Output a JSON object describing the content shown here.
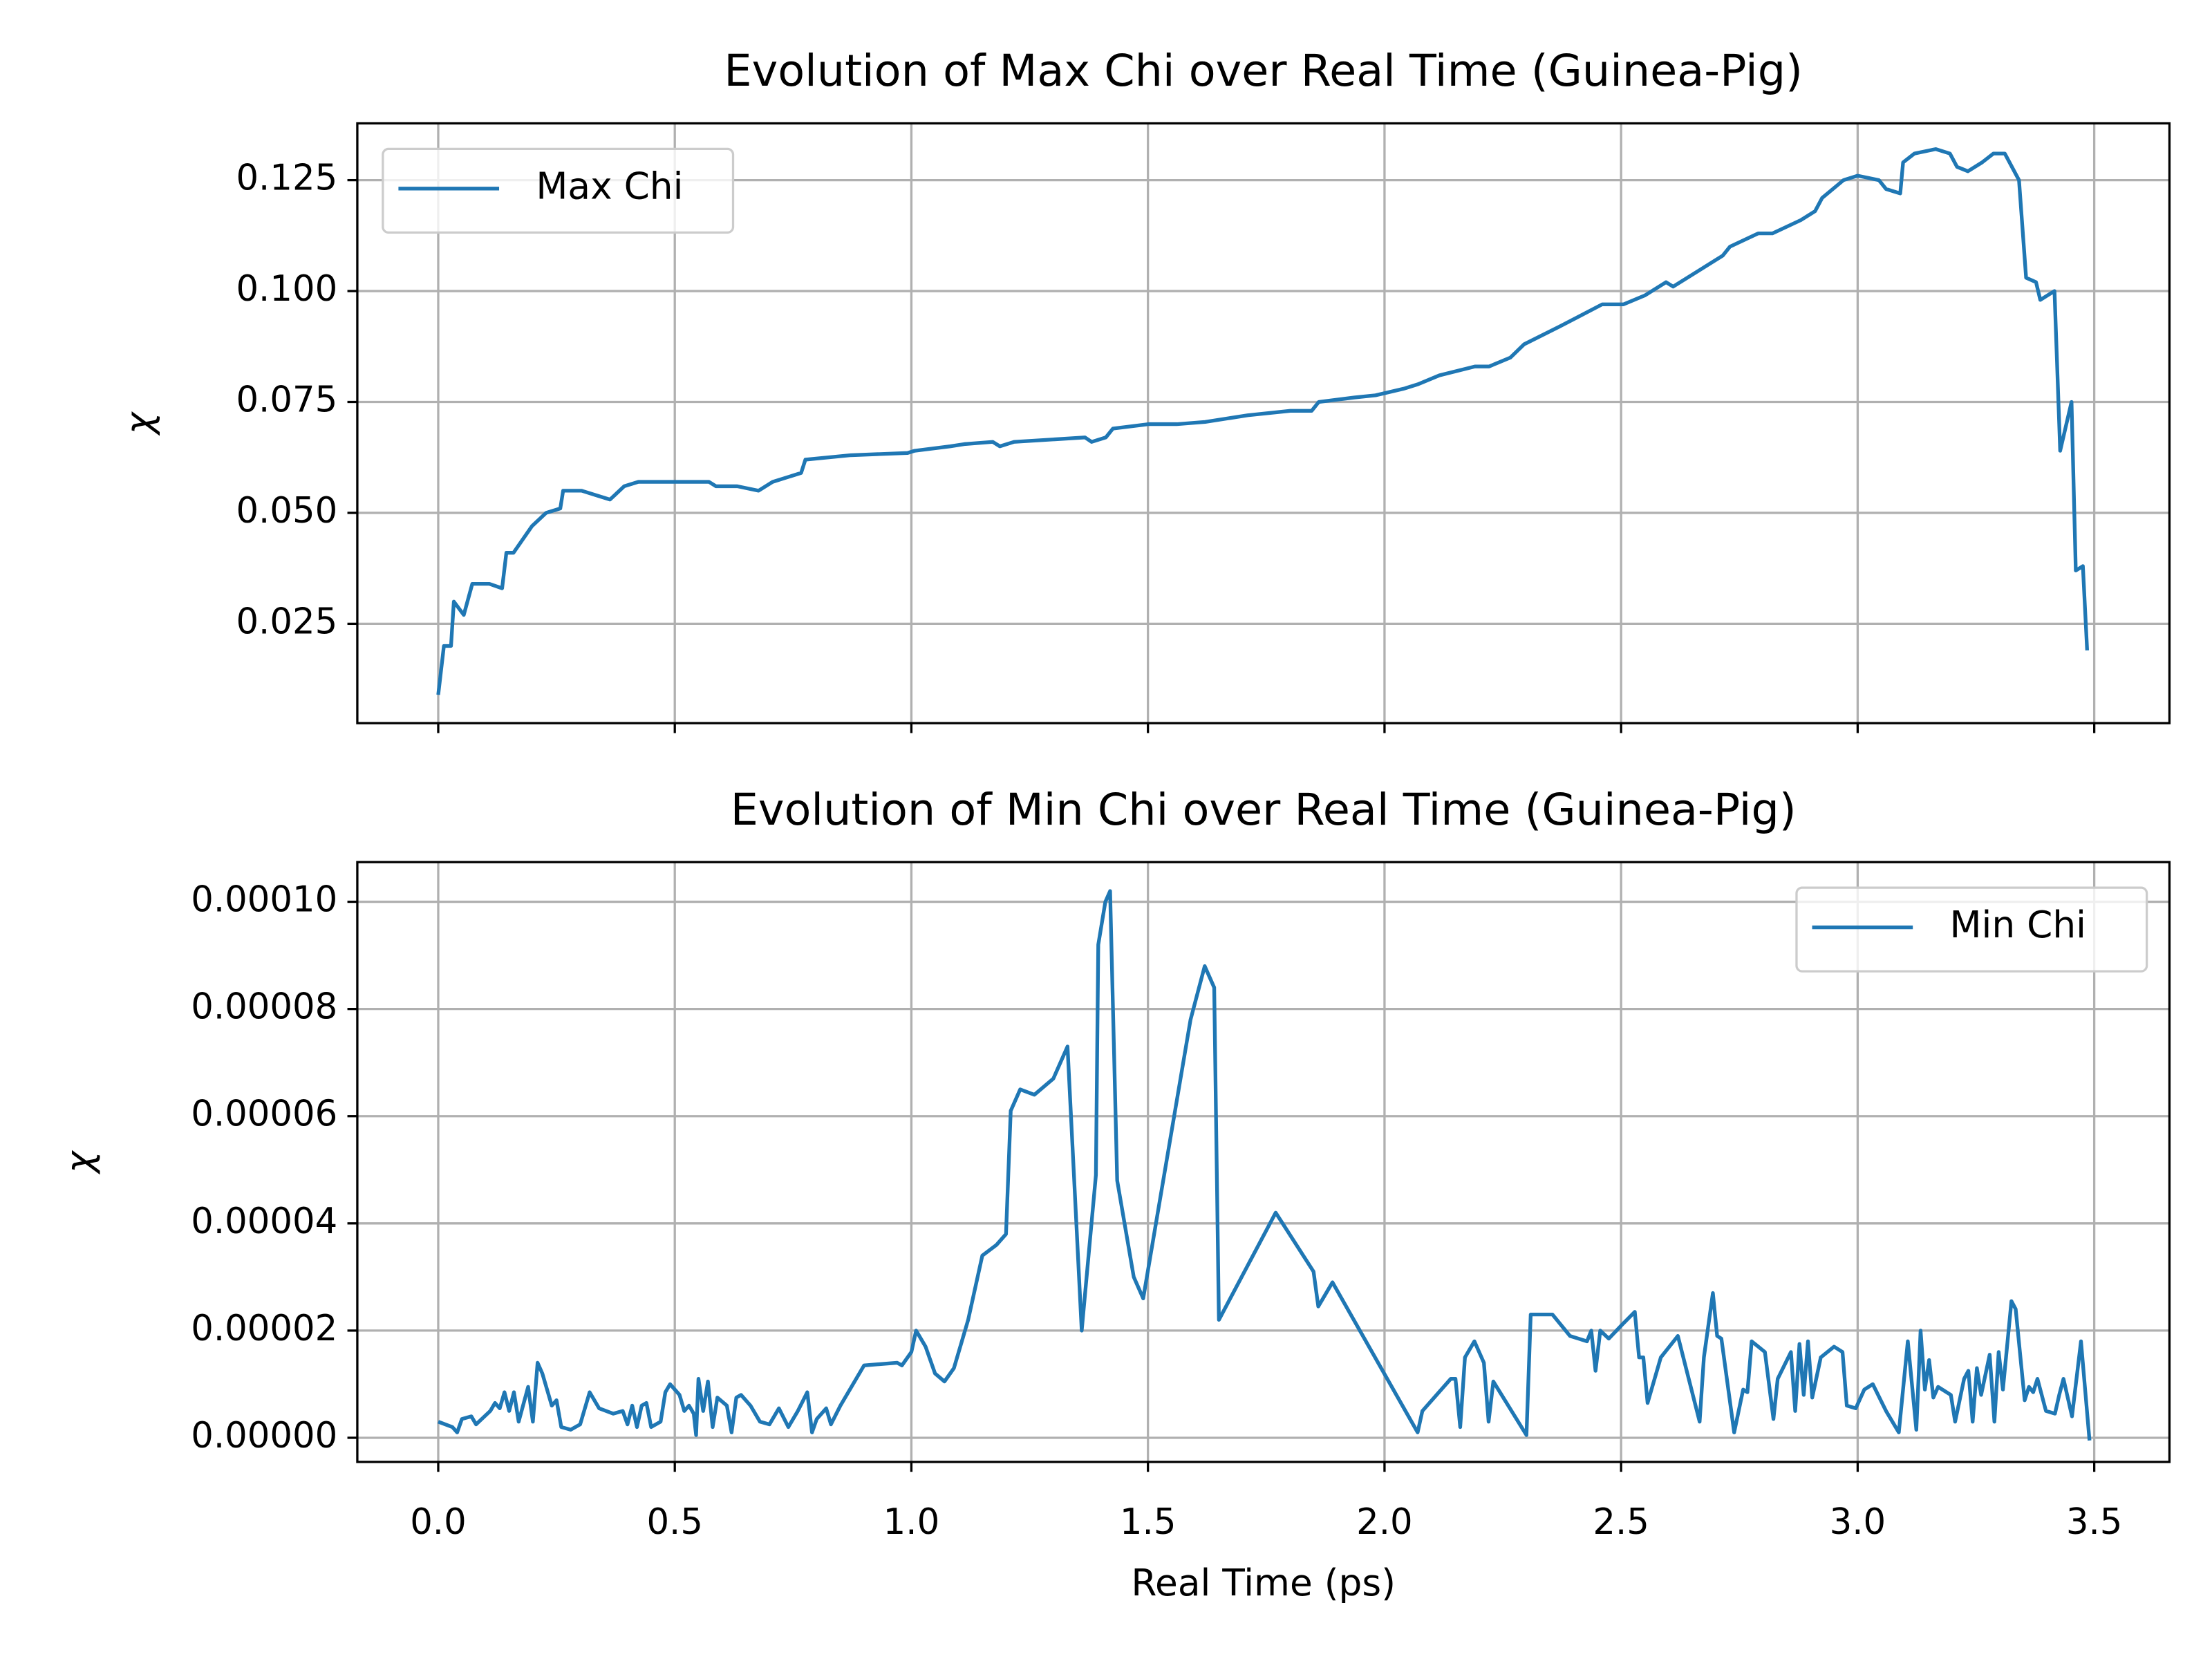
{
  "chart_data": [
    {
      "type": "line",
      "title": "Evolution of Max Chi over Real Time (Guinea-Pig)",
      "ylabel": "χ",
      "x": [
        0.0,
        0.012,
        0.027,
        0.033,
        0.054,
        0.072,
        0.108,
        0.135,
        0.144,
        0.159,
        0.198,
        0.228,
        0.258,
        0.264,
        0.303,
        0.333,
        0.363,
        0.393,
        0.423,
        0.467,
        0.512,
        0.572,
        0.587,
        0.632,
        0.677,
        0.707,
        0.767,
        0.776,
        0.872,
        0.992,
        1.007,
        1.082,
        1.112,
        1.172,
        1.187,
        1.217,
        1.367,
        1.381,
        1.411,
        1.426,
        1.501,
        1.561,
        1.621,
        1.711,
        1.801,
        1.846,
        1.861,
        1.936,
        1.981,
        2.041,
        2.071,
        2.116,
        2.191,
        2.221,
        2.266,
        2.295,
        2.37,
        2.46,
        2.505,
        2.55,
        2.595,
        2.61,
        2.67,
        2.715,
        2.73,
        2.79,
        2.82,
        2.88,
        2.91,
        2.925,
        2.97,
        3.0,
        3.045,
        3.06,
        3.09,
        3.096,
        3.12,
        3.165,
        3.195,
        3.21,
        3.233,
        3.263,
        3.287,
        3.311,
        3.341,
        3.356,
        3.377,
        3.386,
        3.416,
        3.428,
        3.452,
        3.461,
        3.476,
        3.485
      ],
      "series": [
        {
          "name": "Max Chi",
          "color": "#1f77b4",
          "values": [
            0.009,
            0.02,
            0.02,
            0.03,
            0.027,
            0.034,
            0.034,
            0.033,
            0.041,
            0.041,
            0.047,
            0.05,
            0.051,
            0.055,
            0.055,
            0.054,
            0.053,
            0.056,
            0.057,
            0.057,
            0.057,
            0.057,
            0.056,
            0.056,
            0.055,
            0.057,
            0.059,
            0.062,
            0.063,
            0.0635,
            0.064,
            0.065,
            0.0655,
            0.066,
            0.065,
            0.066,
            0.067,
            0.066,
            0.067,
            0.069,
            0.07,
            0.07,
            0.0705,
            0.072,
            0.073,
            0.073,
            0.075,
            0.076,
            0.0765,
            0.078,
            0.079,
            0.081,
            0.083,
            0.083,
            0.085,
            0.088,
            0.092,
            0.097,
            0.097,
            0.099,
            0.102,
            0.101,
            0.105,
            0.108,
            0.11,
            0.113,
            0.113,
            0.116,
            0.118,
            0.121,
            0.125,
            0.126,
            0.125,
            0.123,
            0.122,
            0.129,
            0.131,
            0.132,
            0.131,
            0.128,
            0.127,
            0.129,
            0.131,
            0.131,
            0.125,
            0.103,
            0.102,
            0.098,
            0.1,
            0.064,
            0.075,
            0.037,
            0.038,
            0.019
          ]
        }
      ],
      "xlim": [
        -0.171,
        3.659
      ],
      "ylim": [
        0.0026,
        0.1378
      ],
      "xticks": [
        0,
        0.5,
        1,
        1.5,
        2,
        2.5,
        3,
        3.5
      ],
      "show_xtick_labels": false,
      "yticks": [
        {
          "value": 0.025,
          "label": "0.025"
        },
        {
          "value": 0.05,
          "label": "0.050"
        },
        0.075,
        {
          "value": 0.1,
          "label": "0.100"
        },
        0.125
      ],
      "grid": true,
      "legend": "upper left"
    },
    {
      "type": "line",
      "title": "Evolution of Min Chi over Real Time (Guinea-Pig)",
      "ylabel": "χ",
      "xlabel": "Real Time (ps)",
      "x": [
        0.0,
        0.03,
        0.04,
        0.05,
        0.07,
        0.08,
        0.11,
        0.12,
        0.13,
        0.14,
        0.15,
        0.16,
        0.17,
        0.19,
        0.2,
        0.21,
        0.22,
        0.24,
        0.25,
        0.26,
        0.28,
        0.3,
        0.32,
        0.34,
        0.37,
        0.39,
        0.4,
        0.41,
        0.42,
        0.43,
        0.44,
        0.45,
        0.47,
        0.48,
        0.49,
        0.51,
        0.52,
        0.53,
        0.54,
        0.545,
        0.55,
        0.56,
        0.57,
        0.58,
        0.59,
        0.61,
        0.62,
        0.63,
        0.64,
        0.66,
        0.68,
        0.7,
        0.72,
        0.74,
        0.76,
        0.78,
        0.79,
        0.8,
        0.82,
        0.83,
        0.85,
        0.9,
        0.97,
        0.98,
        1.0,
        1.01,
        1.03,
        1.05,
        1.07,
        1.09,
        1.12,
        1.15,
        1.18,
        1.2,
        1.21,
        1.23,
        1.26,
        1.3,
        1.33,
        1.36,
        1.39,
        1.395,
        1.41,
        1.42,
        1.435,
        1.47,
        1.49,
        1.59,
        1.62,
        1.64,
        1.65,
        1.77,
        1.85,
        1.86,
        1.89,
        2.07,
        2.08,
        2.14,
        2.15,
        2.16,
        2.17,
        2.19,
        2.21,
        2.22,
        2.23,
        2.3,
        2.309,
        2.337,
        2.355,
        2.392,
        2.428,
        2.437,
        2.446,
        2.456,
        2.474,
        2.501,
        2.529,
        2.538,
        2.547,
        2.556,
        2.584,
        2.62,
        2.666,
        2.675,
        2.694,
        2.703,
        2.712,
        2.739,
        2.758,
        2.767,
        2.776,
        2.804,
        2.822,
        2.831,
        2.859,
        2.868,
        2.877,
        2.886,
        2.895,
        2.904,
        2.922,
        2.95,
        2.968,
        2.977,
        2.996,
        3.014,
        3.032,
        3.06,
        3.087,
        3.106,
        3.124,
        3.133,
        3.142,
        3.151,
        3.16,
        3.17,
        3.197,
        3.206,
        3.225,
        3.234,
        3.243,
        3.252,
        3.261,
        3.279,
        3.289,
        3.298,
        3.307,
        3.325,
        3.334,
        3.353,
        3.362,
        3.371,
        3.38,
        3.398,
        3.417,
        3.426,
        3.435,
        3.453,
        3.472,
        3.49
      ],
      "series": [
        {
          "name": "Min Chi",
          "color": "#1f77b4",
          "values": [
            3e-06,
            2e-06,
            1e-06,
            3.5e-06,
            4e-06,
            2.5e-06,
            5e-06,
            6.5e-06,
            5.5e-06,
            8.5e-06,
            5e-06,
            8.5e-06,
            3e-06,
            9.5e-06,
            3e-06,
            1.4e-05,
            1.2e-05,
            6e-06,
            7e-06,
            2e-06,
            1.5e-06,
            2.5e-06,
            8.5e-06,
            5.5e-06,
            4.5e-06,
            5e-06,
            2.5e-06,
            6e-06,
            2e-06,
            6e-06,
            6.5e-06,
            2e-06,
            3e-06,
            8.5e-06,
            1e-05,
            8e-06,
            5e-06,
            6e-06,
            4.5e-06,
            5e-07,
            1.1e-05,
            5e-06,
            1.05e-05,
            2e-06,
            7.5e-06,
            6e-06,
            1e-06,
            7.5e-06,
            8e-06,
            6e-06,
            3e-06,
            2.5e-06,
            5.5e-06,
            2e-06,
            5e-06,
            8.5e-06,
            1e-06,
            3.5e-06,
            5.5e-06,
            2.5e-06,
            6e-06,
            1.35e-05,
            1.4e-05,
            1.35e-05,
            1.6e-05,
            2e-05,
            1.7e-05,
            1.2e-05,
            1.05e-05,
            1.3e-05,
            2.2e-05,
            3.4e-05,
            3.6e-05,
            3.8e-05,
            6.1e-05,
            6.5e-05,
            6.4e-05,
            6.7e-05,
            7.3e-05,
            2e-05,
            4.9e-05,
            9.2e-05,
            0.0001,
            0.000102,
            4.8e-05,
            3e-05,
            2.6e-05,
            7.8e-05,
            8.8e-05,
            8.4e-05,
            2.2e-05,
            4.2e-05,
            3.1e-05,
            2.45e-05,
            2.9e-05,
            1e-06,
            5e-06,
            1.1e-05,
            1.1e-05,
            2e-06,
            1.5e-05,
            1.8e-05,
            1.4e-05,
            3e-06,
            1.05e-05,
            5e-07,
            2.3e-05,
            2.3e-05,
            2.3e-05,
            1.9e-05,
            1.8e-05,
            2e-05,
            1.25e-05,
            2e-05,
            1.85e-05,
            2.1e-05,
            2.35e-05,
            1.5e-05,
            1.5e-05,
            6.5e-06,
            1.5e-05,
            1.9e-05,
            3e-06,
            1.5e-05,
            2.7e-05,
            1.9e-05,
            1.85e-05,
            1e-06,
            9e-06,
            8.5e-06,
            1.8e-05,
            1.6e-05,
            3.5e-06,
            1.1e-05,
            1.6e-05,
            5e-06,
            1.75e-05,
            8e-06,
            1.8e-05,
            7.5e-06,
            1.5e-05,
            1.7e-05,
            1.6e-05,
            6e-06,
            5.5e-06,
            9e-06,
            1e-05,
            5e-06,
            1e-06,
            1.8e-05,
            1.5e-06,
            2e-05,
            9e-06,
            1.45e-05,
            7.5e-06,
            9.5e-06,
            8e-06,
            3e-06,
            1.1e-05,
            1.25e-05,
            3e-06,
            1.3e-05,
            8e-06,
            1.55e-05,
            3e-06,
            1.6e-05,
            9e-06,
            2.55e-05,
            2.4e-05,
            7e-06,
            9.5e-06,
            8.5e-06,
            1.1e-05,
            5e-06,
            4.5e-06,
            8e-06,
            1.1e-05,
            4e-06,
            1.8e-05,
            -5e-07
          ]
        }
      ],
      "xlim": [
        -0.171,
        3.659
      ],
      "ylim": [
        -4.5e-06,
        0.0001074
      ],
      "xticks": [
        {
          "value": 0,
          "label": "0.0"
        },
        0.5,
        {
          "value": 1,
          "label": "1.0"
        },
        1.5,
        {
          "value": 2,
          "label": "2.0"
        },
        2.5,
        {
          "value": 3,
          "label": "3.0"
        },
        3.5
      ],
      "show_xtick_labels": true,
      "yticks": [
        {
          "value": 0,
          "label": "0.00000"
        },
        {
          "value": 2e-05,
          "label": "0.00002"
        },
        {
          "value": 4e-05,
          "label": "0.00004"
        },
        {
          "value": 6e-05,
          "label": "0.00006"
        },
        {
          "value": 8e-05,
          "label": "0.00008"
        },
        {
          "value": 0.0001,
          "label": "0.00010"
        }
      ],
      "grid": true,
      "legend": "upper right"
    }
  ]
}
